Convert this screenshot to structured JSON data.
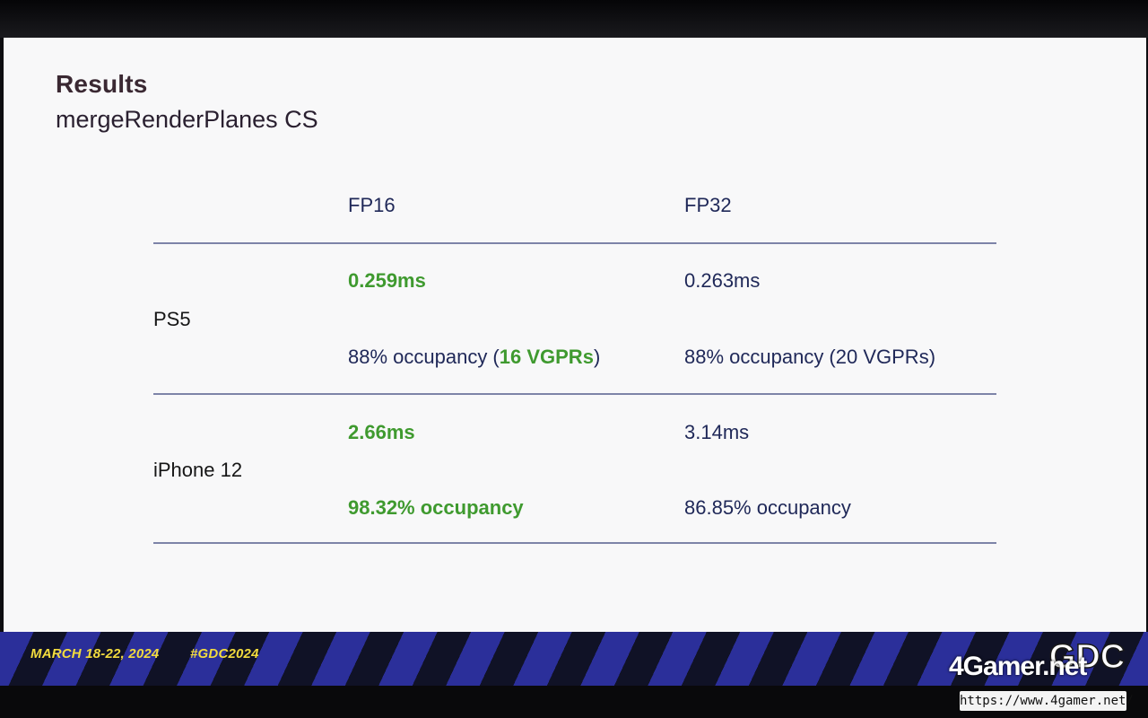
{
  "slide": {
    "title": "Results",
    "subtitle": "mergeRenderPlanes CS"
  },
  "table": {
    "columns": [
      "FP16",
      "FP32"
    ],
    "rows": [
      {
        "label": "PS5",
        "fp16_time": "0.259ms",
        "fp16_occupancy_prefix": "88% occupancy (",
        "fp16_vgprs": "16 VGPRs",
        "fp16_occupancy_suffix": ")",
        "fp32_time": "0.263ms",
        "fp32_occupancy": "88% occupancy (20 VGPRs)"
      },
      {
        "label": "iPhone 12",
        "fp16_time": "2.66ms",
        "fp16_occupancy": "98.32% occupancy",
        "fp32_time": "3.14ms",
        "fp32_occupancy": "86.85% occupancy"
      }
    ]
  },
  "footer": {
    "dates": "MARCH 18-22, 2024",
    "hashtag": "#GDC2024",
    "logo": "GDC"
  },
  "watermark": {
    "brand": "4Gamer.net",
    "url": "https://www.4gamer.net/"
  },
  "colors": {
    "highlight_green": "#3f9a2f",
    "text_navy": "#1f2858",
    "footer_yellow": "#f3dc3e"
  }
}
